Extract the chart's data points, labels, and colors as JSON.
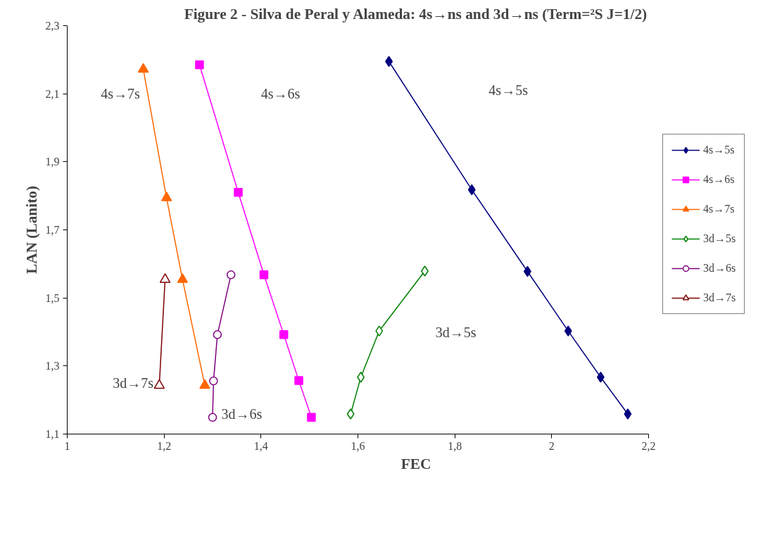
{
  "chart_data": {
    "type": "line",
    "title": "Figure 2 - Silva de Peral y Alameda: 4s→ns and 3d→ns (Term=²S J=1/2)",
    "xlabel": "FEC",
    "ylabel": "LAN (Lanito)",
    "xlim": [
      1,
      2.2
    ],
    "ylim": [
      1.1,
      2.3
    ],
    "xticks": [
      1,
      {
        "value": 1.2,
        "label": "1,2"
      },
      {
        "value": 1.4,
        "label": "1,4"
      },
      {
        "value": 1.6,
        "label": "1,6"
      },
      {
        "value": 1.8,
        "label": "1,8"
      },
      2,
      {
        "value": 2.2,
        "label": "2,2"
      }
    ],
    "yticks": [
      {
        "value": 1.1,
        "label": "1,1"
      },
      {
        "value": 1.3,
        "label": "1,3"
      },
      {
        "value": 1.5,
        "label": "1,5"
      },
      {
        "value": 1.7,
        "label": "1,7"
      },
      {
        "value": 1.9,
        "label": "1,9"
      },
      {
        "value": 2.1,
        "label": "2,1"
      },
      {
        "value": 2.3,
        "label": "2,3"
      }
    ],
    "grid": false,
    "legend": "right",
    "series": [
      {
        "name": "4s→5s",
        "color": "#000080",
        "marker": "diamond",
        "x": [
          1.664,
          1.835,
          1.95,
          2.034,
          2.101,
          2.157
        ],
        "values": [
          2.195,
          1.818,
          1.578,
          1.403,
          1.267,
          1.159
        ]
      },
      {
        "name": "4s→6s",
        "color": "#ff00ff",
        "marker": "square",
        "x": [
          1.273,
          1.353,
          1.406,
          1.447,
          1.478,
          1.504
        ],
        "values": [
          2.185,
          1.81,
          1.568,
          1.392,
          1.257,
          1.149
        ]
      },
      {
        "name": "4s→7s",
        "color": "#ff6600",
        "marker": "triangle",
        "x": [
          1.157,
          1.205,
          1.238,
          1.284
        ],
        "values": [
          2.172,
          1.794,
          1.554,
          1.243
        ]
      },
      {
        "name": "3d→5s",
        "color": "#008000",
        "marker": "diamond",
        "x": [
          1.585,
          1.606,
          1.644,
          1.738
        ],
        "values": [
          1.159,
          1.267,
          1.403,
          1.579
        ]
      },
      {
        "name": "3d→6s",
        "color": "#800080",
        "marker": "circle",
        "x": [
          1.3,
          1.302,
          1.31,
          1.338
        ],
        "values": [
          1.149,
          1.256,
          1.392,
          1.568
        ]
      },
      {
        "name": "3d→7s",
        "color": "#800000",
        "marker": "triangle",
        "x": [
          1.19,
          1.202
        ],
        "values": [
          1.243,
          1.554
        ]
      }
    ],
    "annotations": [
      "4s→7s",
      "4s→6s",
      "4s→5s",
      "3d→5s",
      "3d→6s",
      "3d→7s"
    ]
  }
}
